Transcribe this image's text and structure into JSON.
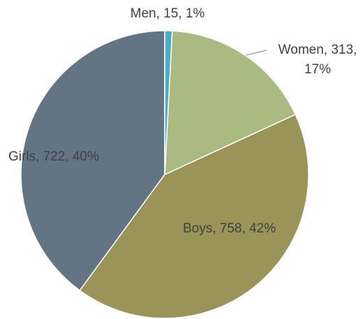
{
  "chart_data": {
    "type": "pie",
    "values": [
      15,
      313,
      758,
      722
    ],
    "value_labels": [
      "Men, 15, 1%",
      "Women, 313, 17%",
      "Boys, 758, 42%",
      "Girls, 722, 40%"
    ],
    "colors": [
      "#4bacc6",
      "#a9bb80",
      "#9a9458",
      "#637585"
    ]
  }
}
